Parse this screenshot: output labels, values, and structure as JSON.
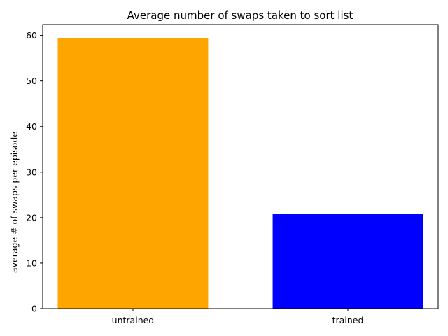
{
  "chart_data": {
    "type": "bar",
    "title": "Average number of swaps taken to sort list",
    "xlabel": "",
    "ylabel": "average # of swaps per episode",
    "categories": [
      "untrained",
      "trained"
    ],
    "values": [
      59.4,
      20.8
    ],
    "colors": [
      "#FFA500",
      "#0000FF"
    ],
    "ylim": [
      0,
      62.4
    ],
    "yticks": [
      0,
      10,
      20,
      30,
      40,
      50,
      60
    ],
    "grid": false,
    "legend": "none"
  }
}
